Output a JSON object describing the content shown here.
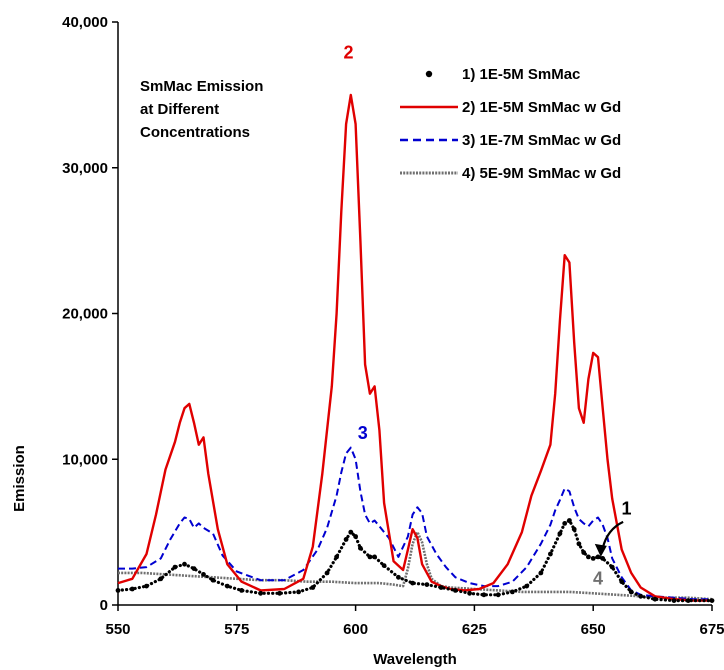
{
  "chart_data": {
    "type": "line",
    "title": "",
    "inset_text": [
      "SmMac Emission",
      "at Different",
      "Concentrations"
    ],
    "xlabel": "Wavelength",
    "ylabel": "Emission",
    "xlim": [
      550,
      675
    ],
    "ylim": [
      0,
      40000
    ],
    "x_ticks": [
      550,
      575,
      600,
      625,
      650,
      675
    ],
    "y_ticks": [
      0,
      10000,
      20000,
      30000,
      40000
    ],
    "x_tick_labels": [
      "550",
      "575",
      "600",
      "625",
      "650",
      "675"
    ],
    "y_tick_labels": [
      "0",
      "10,000",
      "20,000",
      "30,000",
      "40,000"
    ],
    "grid": false,
    "legend_position": "top-right",
    "series": [
      {
        "name": "1) 1E-5M SmMac",
        "color": "#000000",
        "style": "dots",
        "x": [
          550,
          553,
          556,
          559,
          562,
          564,
          566,
          568,
          570,
          573,
          576,
          580,
          584,
          588,
          591,
          594,
          596,
          598,
          599,
          600,
          601,
          603,
          604,
          606,
          609,
          612,
          615,
          618,
          621,
          624,
          627,
          630,
          633,
          636,
          639,
          641,
          643,
          644,
          645,
          646,
          647,
          648,
          649,
          650,
          651,
          652,
          654,
          656,
          658,
          660,
          663,
          667,
          670,
          675
        ],
        "y": [
          1000,
          1100,
          1300,
          1800,
          2600,
          2800,
          2500,
          2100,
          1700,
          1300,
          1000,
          800,
          800,
          900,
          1200,
          2200,
          3300,
          4500,
          5000,
          4700,
          3900,
          3300,
          3300,
          2700,
          1900,
          1500,
          1400,
          1200,
          1000,
          800,
          700,
          700,
          900,
          1300,
          2200,
          3500,
          4900,
          5600,
          5800,
          5200,
          4200,
          3600,
          3300,
          3200,
          3300,
          3200,
          2600,
          1600,
          900,
          600,
          400,
          300,
          300,
          300
        ]
      },
      {
        "name": "2) 1E-5M SmMac w Gd",
        "color": "#e00000",
        "style": "solid",
        "x": [
          550,
          553,
          556,
          558,
          560,
          562,
          563,
          564,
          565,
          566,
          567,
          568,
          569,
          571,
          573,
          576,
          580,
          585,
          589,
          591,
          593,
          595,
          596,
          597,
          598,
          599,
          600,
          601,
          602,
          603,
          604,
          605,
          606,
          608,
          610,
          611,
          612,
          613,
          614,
          616,
          618,
          620,
          623,
          626,
          629,
          632,
          635,
          637,
          639,
          641,
          642,
          643,
          644,
          645,
          646,
          647,
          648,
          649,
          650,
          651,
          652,
          653,
          654,
          656,
          658,
          660,
          663,
          667,
          671,
          675
        ],
        "y": [
          1500,
          1800,
          3500,
          6200,
          9300,
          11200,
          12500,
          13500,
          13800,
          12500,
          11000,
          11500,
          9000,
          5200,
          2800,
          1600,
          1000,
          1100,
          1800,
          4000,
          9000,
          15000,
          20000,
          27000,
          33000,
          35000,
          33000,
          25000,
          16500,
          14500,
          15000,
          12000,
          7000,
          3000,
          2400,
          3800,
          5200,
          4600,
          2800,
          1600,
          1300,
          1100,
          1000,
          1100,
          1500,
          2800,
          5000,
          7500,
          9200,
          11000,
          14500,
          19500,
          24000,
          23500,
          18000,
          13500,
          12500,
          15500,
          17300,
          17000,
          13500,
          10000,
          7300,
          3800,
          2200,
          1200,
          600,
          400,
          300,
          300
        ]
      },
      {
        "name": "3) 1E-7M SmMac w Gd",
        "color": "#0000d0",
        "style": "dashed",
        "x": [
          550,
          553,
          556,
          559,
          561,
          563,
          564,
          565,
          566,
          567,
          568,
          570,
          572,
          575,
          580,
          585,
          589,
          592,
          594,
          596,
          597,
          598,
          599,
          600,
          601,
          602,
          603,
          604,
          605,
          607,
          609,
          611,
          612,
          613,
          614,
          615,
          617,
          619,
          621,
          624,
          627,
          630,
          633,
          636,
          639,
          641,
          642,
          643,
          644,
          645,
          646,
          647,
          648,
          649,
          650,
          651,
          652,
          653,
          654,
          656,
          658,
          660,
          663,
          667,
          671,
          675
        ],
        "y": [
          2500,
          2500,
          2600,
          3200,
          4500,
          5600,
          6000,
          5900,
          5300,
          5600,
          5300,
          4900,
          3400,
          2300,
          1700,
          1700,
          2400,
          3800,
          5300,
          7500,
          9100,
          10400,
          10800,
          10000,
          7800,
          6200,
          5600,
          5800,
          5400,
          4600,
          3300,
          4700,
          6200,
          6700,
          6300,
          4700,
          3500,
          2600,
          1900,
          1500,
          1300,
          1300,
          1600,
          2600,
          4200,
          5500,
          6500,
          7200,
          8000,
          7800,
          6700,
          5900,
          5600,
          5400,
          5800,
          6000,
          5500,
          4600,
          3200,
          1900,
          1000,
          700,
          600,
          500,
          400,
          400
        ]
      },
      {
        "name": "4) 5E-9M SmMac w Gd",
        "color": "#707070",
        "style": "solid-thin",
        "x": [
          550,
          555,
          560,
          565,
          570,
          575,
          580,
          585,
          590,
          595,
          600,
          605,
          608,
          610,
          611,
          612,
          613,
          614,
          615,
          616,
          618,
          620,
          625,
          630,
          635,
          640,
          645,
          650,
          655,
          660,
          665,
          670,
          675
        ],
        "y": [
          2200,
          2200,
          2100,
          2000,
          1900,
          1800,
          1700,
          1700,
          1600,
          1600,
          1500,
          1500,
          1400,
          1300,
          2500,
          4200,
          5000,
          4300,
          2800,
          1800,
          1300,
          1200,
          1100,
          1000,
          900,
          900,
          900,
          800,
          700,
          600,
          500,
          500,
          400
        ]
      }
    ],
    "annotations": [
      {
        "text": "2",
        "color": "#e00000",
        "x": 598.5,
        "y": 37500
      },
      {
        "text": "3",
        "color": "#0000d0",
        "x": 601.5,
        "y": 11400
      },
      {
        "text": "1",
        "color": "#000000",
        "x": 657,
        "y": 6200
      },
      {
        "text": "4",
        "color": "#707070",
        "x": 651,
        "y": 1400
      }
    ]
  }
}
